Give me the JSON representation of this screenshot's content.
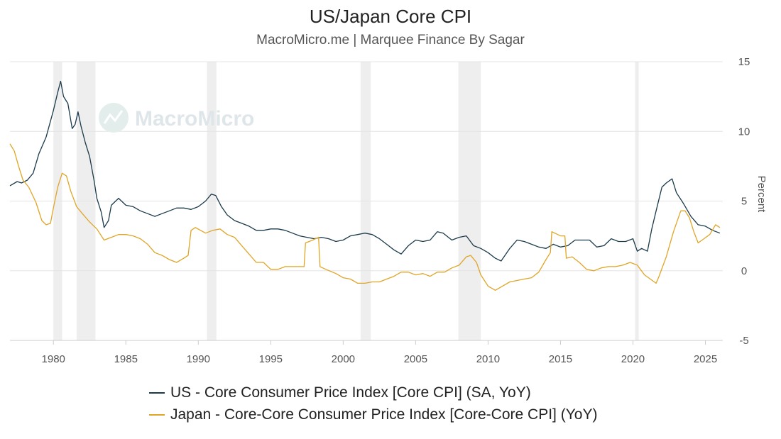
{
  "header": {
    "title": "US/Japan Core CPI",
    "subtitle": "MacroMicro.me | Marquee Finance By Sagar"
  },
  "watermark": "MacroMicro",
  "chart_data": {
    "type": "line",
    "title": "US/Japan Core CPI",
    "subtitle": "MacroMicro.me | Marquee Finance By Sagar",
    "xlabel": "",
    "ylabel": "Percent",
    "xlim": [
      1977,
      2026.2
    ],
    "ylim": [
      -5,
      15
    ],
    "x_ticks": [
      1980,
      1985,
      1990,
      1995,
      2000,
      2005,
      2010,
      2015,
      2020,
      2025
    ],
    "y_ticks": [
      15,
      10,
      5,
      0,
      -5
    ],
    "y_axis_position": "right",
    "grid": true,
    "legend_position": "bottom",
    "recession_shading": [
      [
        1980.0,
        1980.6
      ],
      [
        1981.6,
        1982.9
      ],
      [
        1990.6,
        1991.25
      ],
      [
        2001.2,
        2001.9
      ],
      [
        2007.95,
        2009.5
      ],
      [
        2020.15,
        2020.4
      ]
    ],
    "series": [
      {
        "name": "US - Core Consumer Price Index [Core CPI] (SA, YoY)",
        "color": "#1b3a4b",
        "points": [
          [
            1977.0,
            6.1
          ],
          [
            1977.5,
            6.4
          ],
          [
            1977.8,
            6.3
          ],
          [
            1978.2,
            6.5
          ],
          [
            1978.6,
            7.0
          ],
          [
            1979.0,
            8.4
          ],
          [
            1979.5,
            9.6
          ],
          [
            1980.0,
            11.5
          ],
          [
            1980.3,
            12.8
          ],
          [
            1980.5,
            13.6
          ],
          [
            1980.7,
            12.5
          ],
          [
            1981.0,
            12.0
          ],
          [
            1981.3,
            10.2
          ],
          [
            1981.5,
            10.5
          ],
          [
            1981.7,
            11.4
          ],
          [
            1981.9,
            10.4
          ],
          [
            1982.2,
            9.2
          ],
          [
            1982.5,
            8.2
          ],
          [
            1982.8,
            6.5
          ],
          [
            1983.0,
            5.2
          ],
          [
            1983.3,
            4.2
          ],
          [
            1983.5,
            3.1
          ],
          [
            1983.8,
            3.6
          ],
          [
            1984.0,
            4.7
          ],
          [
            1984.5,
            5.2
          ],
          [
            1985.0,
            4.7
          ],
          [
            1985.5,
            4.6
          ],
          [
            1986.0,
            4.3
          ],
          [
            1986.5,
            4.1
          ],
          [
            1987.0,
            3.9
          ],
          [
            1987.5,
            4.1
          ],
          [
            1988.0,
            4.3
          ],
          [
            1988.5,
            4.5
          ],
          [
            1989.0,
            4.5
          ],
          [
            1989.5,
            4.4
          ],
          [
            1990.0,
            4.6
          ],
          [
            1990.5,
            5.0
          ],
          [
            1990.9,
            5.5
          ],
          [
            1991.2,
            5.4
          ],
          [
            1991.6,
            4.6
          ],
          [
            1992.0,
            4.0
          ],
          [
            1992.5,
            3.6
          ],
          [
            1993.0,
            3.4
          ],
          [
            1993.5,
            3.2
          ],
          [
            1994.0,
            2.9
          ],
          [
            1994.5,
            2.9
          ],
          [
            1995.0,
            3.0
          ],
          [
            1995.5,
            3.0
          ],
          [
            1996.0,
            2.9
          ],
          [
            1996.5,
            2.7
          ],
          [
            1997.0,
            2.5
          ],
          [
            1997.5,
            2.4
          ],
          [
            1998.0,
            2.3
          ],
          [
            1998.5,
            2.4
          ],
          [
            1999.0,
            2.3
          ],
          [
            1999.5,
            2.1
          ],
          [
            2000.0,
            2.2
          ],
          [
            2000.5,
            2.5
          ],
          [
            2001.0,
            2.6
          ],
          [
            2001.5,
            2.7
          ],
          [
            2002.0,
            2.6
          ],
          [
            2002.5,
            2.3
          ],
          [
            2003.0,
            1.9
          ],
          [
            2003.5,
            1.5
          ],
          [
            2004.0,
            1.2
          ],
          [
            2004.5,
            1.8
          ],
          [
            2005.0,
            2.2
          ],
          [
            2005.5,
            2.1
          ],
          [
            2006.0,
            2.2
          ],
          [
            2006.5,
            2.8
          ],
          [
            2006.9,
            2.7
          ],
          [
            2007.5,
            2.2
          ],
          [
            2008.0,
            2.4
          ],
          [
            2008.5,
            2.5
          ],
          [
            2009.0,
            1.8
          ],
          [
            2009.5,
            1.6
          ],
          [
            2010.0,
            1.3
          ],
          [
            2010.5,
            0.9
          ],
          [
            2010.9,
            0.7
          ],
          [
            2011.5,
            1.6
          ],
          [
            2012.0,
            2.2
          ],
          [
            2012.5,
            2.1
          ],
          [
            2013.0,
            1.9
          ],
          [
            2013.5,
            1.7
          ],
          [
            2014.0,
            1.6
          ],
          [
            2014.5,
            1.9
          ],
          [
            2015.0,
            1.7
          ],
          [
            2015.5,
            1.8
          ],
          [
            2016.0,
            2.2
          ],
          [
            2016.5,
            2.2
          ],
          [
            2017.0,
            2.2
          ],
          [
            2017.5,
            1.7
          ],
          [
            2018.0,
            1.8
          ],
          [
            2018.5,
            2.3
          ],
          [
            2019.0,
            2.1
          ],
          [
            2019.5,
            2.1
          ],
          [
            2020.0,
            2.3
          ],
          [
            2020.3,
            1.4
          ],
          [
            2020.6,
            1.6
          ],
          [
            2021.0,
            1.4
          ],
          [
            2021.3,
            3.0
          ],
          [
            2021.6,
            4.3
          ],
          [
            2022.0,
            6.0
          ],
          [
            2022.3,
            6.3
          ],
          [
            2022.7,
            6.6
          ],
          [
            2023.0,
            5.6
          ],
          [
            2023.5,
            4.8
          ],
          [
            2024.0,
            3.9
          ],
          [
            2024.5,
            3.3
          ],
          [
            2025.0,
            3.2
          ],
          [
            2025.5,
            2.9
          ],
          [
            2026.0,
            2.7
          ]
        ]
      },
      {
        "name": "Japan - Core-Core Consumer Price Index [Core-Core CPI] (YoY)",
        "color": "#e0a526",
        "points": [
          [
            1977.0,
            9.1
          ],
          [
            1977.3,
            8.6
          ],
          [
            1977.6,
            7.5
          ],
          [
            1977.9,
            6.5
          ],
          [
            1978.3,
            6.0
          ],
          [
            1978.8,
            4.9
          ],
          [
            1979.2,
            3.6
          ],
          [
            1979.5,
            3.3
          ],
          [
            1979.8,
            3.4
          ],
          [
            1980.0,
            4.5
          ],
          [
            1980.3,
            6.0
          ],
          [
            1980.6,
            7.0
          ],
          [
            1980.9,
            6.8
          ],
          [
            1981.2,
            5.7
          ],
          [
            1981.6,
            4.6
          ],
          [
            1982.0,
            4.1
          ],
          [
            1982.5,
            3.5
          ],
          [
            1983.0,
            3.0
          ],
          [
            1983.5,
            2.2
          ],
          [
            1984.0,
            2.4
          ],
          [
            1984.5,
            2.6
          ],
          [
            1985.0,
            2.6
          ],
          [
            1985.5,
            2.5
          ],
          [
            1986.0,
            2.3
          ],
          [
            1986.5,
            1.9
          ],
          [
            1987.0,
            1.3
          ],
          [
            1987.5,
            1.1
          ],
          [
            1988.0,
            0.8
          ],
          [
            1988.5,
            0.6
          ],
          [
            1989.0,
            0.9
          ],
          [
            1989.3,
            1.1
          ],
          [
            1989.5,
            2.9
          ],
          [
            1989.8,
            3.1
          ],
          [
            1990.5,
            2.7
          ],
          [
            1991.0,
            2.9
          ],
          [
            1991.5,
            3.0
          ],
          [
            1992.0,
            2.6
          ],
          [
            1992.5,
            2.4
          ],
          [
            1993.0,
            1.8
          ],
          [
            1993.5,
            1.2
          ],
          [
            1994.0,
            0.6
          ],
          [
            1994.5,
            0.6
          ],
          [
            1995.0,
            0.1
          ],
          [
            1995.5,
            0.1
          ],
          [
            1996.0,
            0.3
          ],
          [
            1996.5,
            0.3
          ],
          [
            1997.0,
            0.3
          ],
          [
            1997.3,
            0.3
          ],
          [
            1997.4,
            2.0
          ],
          [
            1997.9,
            2.2
          ],
          [
            1998.3,
            2.4
          ],
          [
            1998.4,
            0.3
          ],
          [
            1998.8,
            0.1
          ],
          [
            1999.5,
            -0.2
          ],
          [
            2000.0,
            -0.5
          ],
          [
            2000.5,
            -0.6
          ],
          [
            2001.0,
            -0.9
          ],
          [
            2001.5,
            -0.9
          ],
          [
            2002.0,
            -0.8
          ],
          [
            2002.5,
            -0.8
          ],
          [
            2003.0,
            -0.6
          ],
          [
            2003.5,
            -0.4
          ],
          [
            2004.0,
            -0.1
          ],
          [
            2004.5,
            -0.1
          ],
          [
            2005.0,
            -0.3
          ],
          [
            2005.5,
            -0.2
          ],
          [
            2006.0,
            -0.4
          ],
          [
            2006.5,
            -0.1
          ],
          [
            2007.0,
            -0.1
          ],
          [
            2007.5,
            0.2
          ],
          [
            2008.0,
            0.4
          ],
          [
            2008.5,
            1.0
          ],
          [
            2008.8,
            1.1
          ],
          [
            2009.2,
            0.6
          ],
          [
            2009.5,
            -0.3
          ],
          [
            2010.0,
            -1.1
          ],
          [
            2010.5,
            -1.4
          ],
          [
            2011.0,
            -1.1
          ],
          [
            2011.5,
            -0.8
          ],
          [
            2012.0,
            -0.7
          ],
          [
            2012.5,
            -0.6
          ],
          [
            2013.0,
            -0.5
          ],
          [
            2013.5,
            -0.1
          ],
          [
            2014.0,
            0.8
          ],
          [
            2014.3,
            1.3
          ],
          [
            2014.4,
            2.8
          ],
          [
            2015.0,
            2.5
          ],
          [
            2015.3,
            2.5
          ],
          [
            2015.4,
            0.9
          ],
          [
            2015.8,
            1.0
          ],
          [
            2016.3,
            0.6
          ],
          [
            2016.8,
            0.1
          ],
          [
            2017.3,
            0.0
          ],
          [
            2017.8,
            0.2
          ],
          [
            2018.3,
            0.3
          ],
          [
            2018.8,
            0.3
          ],
          [
            2019.3,
            0.4
          ],
          [
            2019.8,
            0.6
          ],
          [
            2020.3,
            0.4
          ],
          [
            2020.8,
            -0.3
          ],
          [
            2021.2,
            -0.6
          ],
          [
            2021.6,
            -0.9
          ],
          [
            2021.8,
            -0.4
          ],
          [
            2022.3,
            1.0
          ],
          [
            2022.8,
            2.8
          ],
          [
            2023.3,
            4.3
          ],
          [
            2023.6,
            4.3
          ],
          [
            2023.9,
            3.8
          ],
          [
            2024.2,
            2.8
          ],
          [
            2024.5,
            2.0
          ],
          [
            2024.9,
            2.3
          ],
          [
            2025.3,
            2.6
          ],
          [
            2025.7,
            3.3
          ],
          [
            2026.0,
            3.1
          ]
        ]
      }
    ]
  }
}
